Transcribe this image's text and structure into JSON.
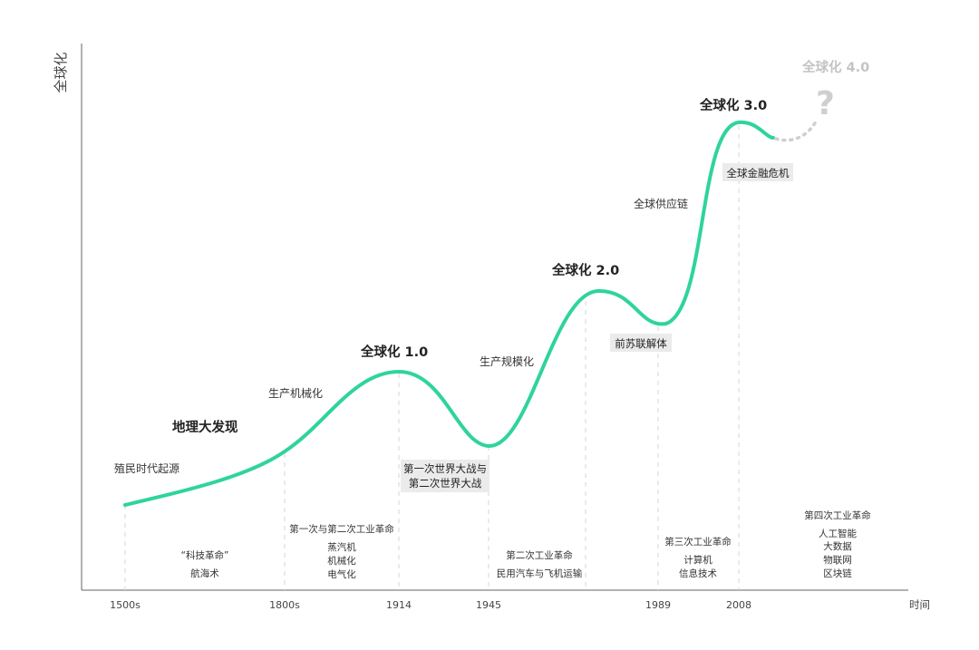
{
  "y_axis_label": "全球化",
  "x_axis_label": "时间",
  "x_ticks": [
    "1500s",
    "1800s",
    "1914",
    "1945",
    "1989",
    "2008"
  ],
  "curve_labels": {
    "colonial": "殖民时代起源",
    "discovery": "地理大发现",
    "mechanization": "生产机械化",
    "g1": "全球化 1.0",
    "mass_production": "生产规模化",
    "g2": "全球化 2.0",
    "supply_chain": "全球供应链",
    "g3": "全球化 3.0",
    "g4": "全球化 4.0",
    "question": "?"
  },
  "events": {
    "world_wars_line1": "第一次世界大战与",
    "world_wars_line2": "第二次世界大战",
    "ussr_breakup": "前苏联解体",
    "financial_crisis": "全球金融危机"
  },
  "revolutions": {
    "r0": [
      "“科技革命”",
      "航海术"
    ],
    "r1": [
      "第一次与第二次工业革命",
      "蒸汽机",
      "机械化",
      "电气化"
    ],
    "r2": [
      "第二次工业革命",
      "民用汽车与飞机运输"
    ],
    "r3": [
      "第三次工业革命",
      "计算机",
      "信息技术"
    ],
    "r4": [
      "第四次工业革命",
      "人工智能",
      "大数据",
      "物联网",
      "区块链"
    ]
  },
  "colors": {
    "curve": "#2fd49a",
    "dotted_future": "#cfcfcf",
    "future_text": "#c4c4c4",
    "axis": "#555555",
    "dash": "#d4d4d4",
    "event_box": "#ebebeb"
  }
}
